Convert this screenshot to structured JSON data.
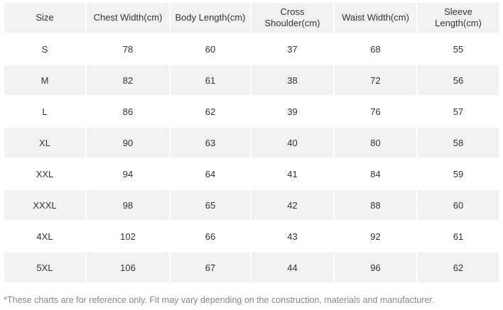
{
  "table": {
    "header": [
      "Size",
      "Chest Width(cm)",
      "Body Length(cm)",
      "Cross Shoulder(cm)",
      "Waist Width(cm)",
      "Sleeve Length(cm)"
    ],
    "rows": [
      [
        "S",
        78,
        60,
        37,
        68,
        55
      ],
      [
        "M",
        82,
        61,
        38,
        72,
        56
      ],
      [
        "L",
        86,
        62,
        39,
        76,
        57
      ],
      [
        "XL",
        90,
        63,
        40,
        80,
        58
      ],
      [
        "XXL",
        94,
        64,
        41,
        84,
        59
      ],
      [
        "XXXL",
        98,
        65,
        42,
        88,
        60
      ],
      [
        "4XL",
        102,
        66,
        43,
        92,
        61
      ],
      [
        "5XL",
        106,
        67,
        44,
        96,
        62
      ]
    ]
  },
  "footnote": "*These charts are for reference only. Fit may vary depending on the construction, materials and manufacturer."
}
